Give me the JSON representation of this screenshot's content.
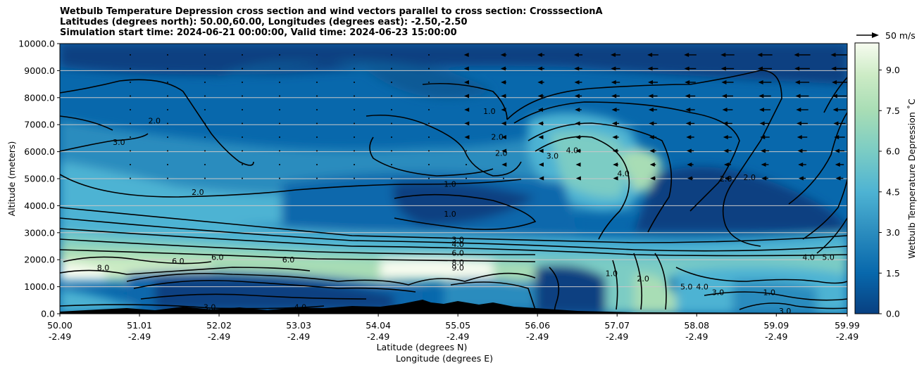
{
  "title": {
    "line1": "Wetbulb Temperature Depression cross section and wind vectors parallel to cross section: CrosssectionA",
    "line2": "Latitudes (degrees north): 50.00,60.00, Longitudes (degrees east): -2.50,-2.50",
    "line3": "Simulation start time: 2024-06-21 00:00:00, Valid time: 2024-06-23 15:00:00"
  },
  "chart_data": {
    "type": "heatmap",
    "xlabel_lat": "Latitude (degrees N)",
    "xlabel_lon": "Longitude (degrees E)",
    "ylabel": "Altitude (meters)",
    "colorbar_label": "Wetbulb Temperature Depression $^\\circ$C",
    "colorbar_label_text": "Wetbulb Temperature Depression ˚C",
    "ylim": [
      0,
      10000
    ],
    "clim": [
      0,
      10
    ],
    "x_ticks": [
      {
        "lat": "50.00",
        "lon": "-2.49"
      },
      {
        "lat": "51.01",
        "lon": "-2.49"
      },
      {
        "lat": "52.02",
        "lon": "-2.49"
      },
      {
        "lat": "53.03",
        "lon": "-2.49"
      },
      {
        "lat": "54.04",
        "lon": "-2.49"
      },
      {
        "lat": "55.05",
        "lon": "-2.49"
      },
      {
        "lat": "56.06",
        "lon": "-2.49"
      },
      {
        "lat": "57.07",
        "lon": "-2.49"
      },
      {
        "lat": "58.08",
        "lon": "-2.49"
      },
      {
        "lat": "59.09",
        "lon": "-2.49"
      },
      {
        "lat": "59.99",
        "lon": "-2.49"
      }
    ],
    "y_ticks": [
      "0.0",
      "1000.0",
      "2000.0",
      "3000.0",
      "4000.0",
      "5000.0",
      "6000.0",
      "7000.0",
      "8000.0",
      "9000.0",
      "10000.0"
    ],
    "colorbar_ticks": [
      "0.0",
      "1.5",
      "3.0",
      "4.5",
      "6.0",
      "7.5",
      "9.0"
    ],
    "quiver_key": "50 m/s",
    "contour_labels": [
      {
        "text": "2.0",
        "lat": 51.2,
        "alt": 7150
      },
      {
        "text": "3.0",
        "lat": 50.75,
        "alt": 6350
      },
      {
        "text": "2.0",
        "lat": 51.75,
        "alt": 4500
      },
      {
        "text": "1.0",
        "lat": 54.95,
        "alt": 4800
      },
      {
        "text": "1.0",
        "lat": 54.95,
        "alt": 3700
      },
      {
        "text": "1.0",
        "lat": 55.45,
        "alt": 7500
      },
      {
        "text": "2.0",
        "lat": 55.55,
        "alt": 6550
      },
      {
        "text": "2.0",
        "lat": 55.6,
        "alt": 5950
      },
      {
        "text": "3.0",
        "lat": 56.25,
        "alt": 5850
      },
      {
        "text": "4.0",
        "lat": 56.5,
        "alt": 6050
      },
      {
        "text": "4.0",
        "lat": 57.15,
        "alt": 5200
      },
      {
        "text": "2.0",
        "lat": 58.45,
        "alt": 5000
      },
      {
        "text": "2.0",
        "lat": 58.75,
        "alt": 5050
      },
      {
        "text": "3.0",
        "lat": 55.05,
        "alt": 2750
      },
      {
        "text": "4.0",
        "lat": 55.05,
        "alt": 2580
      },
      {
        "text": "6.0",
        "lat": 55.05,
        "alt": 2250
      },
      {
        "text": "8.0",
        "lat": 55.05,
        "alt": 1900
      },
      {
        "text": "9.0",
        "lat": 55.05,
        "alt": 1700
      },
      {
        "text": "6.0",
        "lat": 51.5,
        "alt": 1950
      },
      {
        "text": "6.0",
        "lat": 52.0,
        "alt": 2100
      },
      {
        "text": "6.0",
        "lat": 52.9,
        "alt": 2000
      },
      {
        "text": "8.0",
        "lat": 50.55,
        "alt": 1700
      },
      {
        "text": "3.0",
        "lat": 51.9,
        "alt": 250
      },
      {
        "text": "4.0",
        "lat": 53.05,
        "alt": 250
      },
      {
        "text": "4.0",
        "lat": 59.5,
        "alt": 2100
      },
      {
        "text": "5.0",
        "lat": 59.75,
        "alt": 2100
      },
      {
        "text": "5.0",
        "lat": 57.95,
        "alt": 1000
      },
      {
        "text": "4.0",
        "lat": 58.15,
        "alt": 1000
      },
      {
        "text": "3.0",
        "lat": 58.35,
        "alt": 800
      },
      {
        "text": "1.0",
        "lat": 59.0,
        "alt": 800
      },
      {
        "text": "2.0",
        "lat": 57.4,
        "alt": 1300
      },
      {
        "text": "1.0",
        "lat": 57.0,
        "alt": 1500
      },
      {
        "text": "3.0",
        "lat": 59.2,
        "alt": 100
      }
    ]
  }
}
